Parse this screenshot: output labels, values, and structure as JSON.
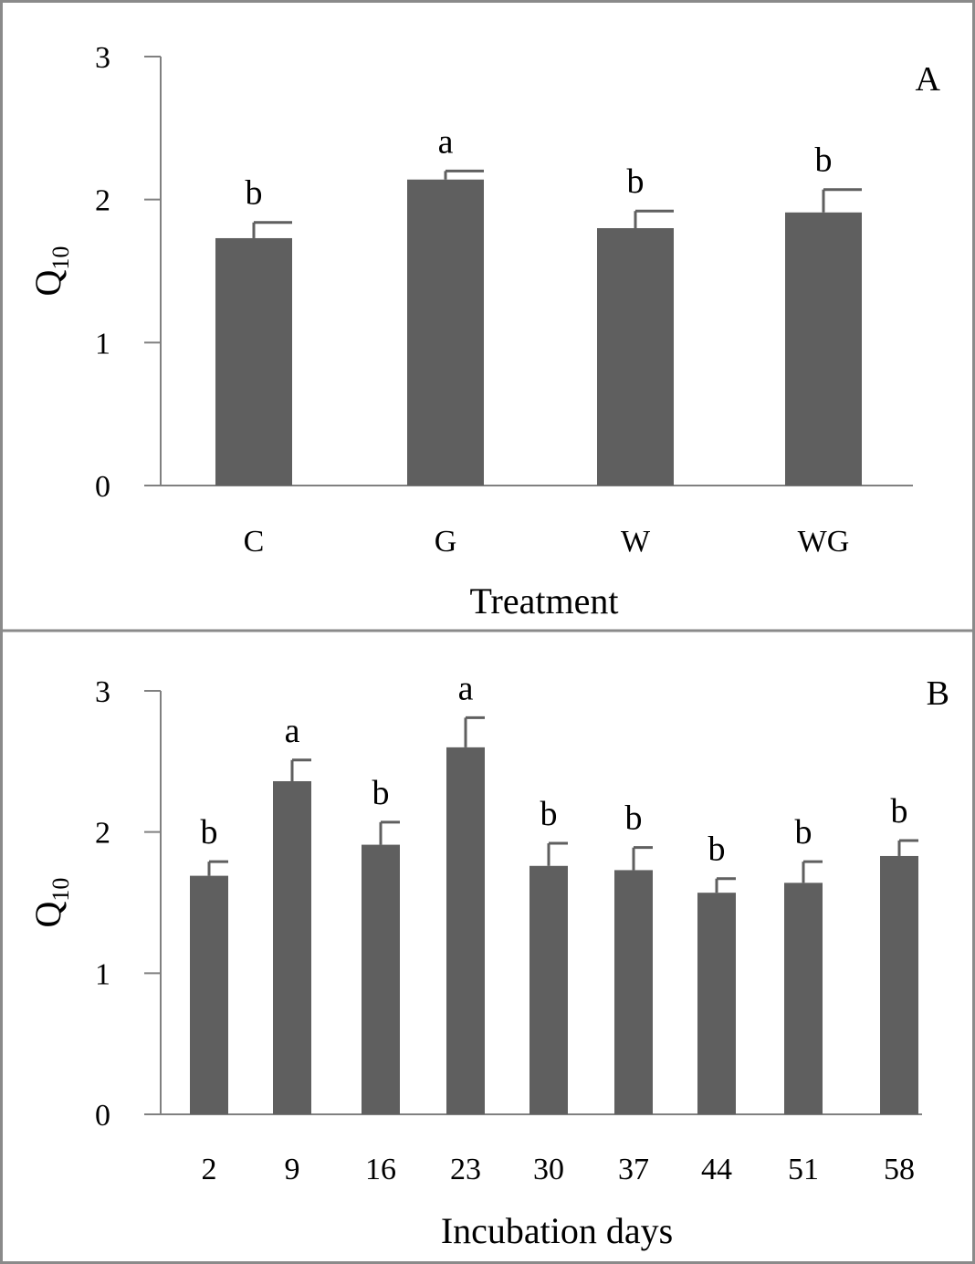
{
  "colors": {
    "bar": "#5f5f5f",
    "axis": "#808080",
    "frame": "#8a8a8a",
    "text": "#000000"
  },
  "chart_data": [
    {
      "type": "bar",
      "panel_label": "A",
      "xlabel": "Treatment",
      "ylabel": "Q",
      "ylabel_subscript": "10",
      "ylim": [
        0,
        3
      ],
      "yticks": [
        "0",
        "1",
        "2",
        "3"
      ],
      "categories": [
        "C",
        "G",
        "W",
        "WG"
      ],
      "values": [
        1.73,
        2.14,
        1.8,
        1.91
      ],
      "errors": [
        0.11,
        0.06,
        0.12,
        0.16
      ],
      "significance": [
        "b",
        "a",
        "b",
        "b"
      ]
    },
    {
      "type": "bar",
      "panel_label": "B",
      "xlabel": "Incubation days",
      "ylabel": "Q",
      "ylabel_subscript": "10",
      "ylim": [
        0,
        3
      ],
      "yticks": [
        "0",
        "1",
        "2",
        "3"
      ],
      "categories": [
        "2",
        "9",
        "16",
        "23",
        "30",
        "37",
        "44",
        "51",
        "58"
      ],
      "values": [
        1.69,
        2.36,
        1.91,
        2.6,
        1.76,
        1.73,
        1.57,
        1.64,
        1.83
      ],
      "errors": [
        0.1,
        0.15,
        0.16,
        0.21,
        0.16,
        0.16,
        0.1,
        0.15,
        0.11
      ],
      "significance": [
        "b",
        "a",
        "b",
        "a",
        "b",
        "b",
        "b",
        "b",
        "b"
      ]
    }
  ]
}
